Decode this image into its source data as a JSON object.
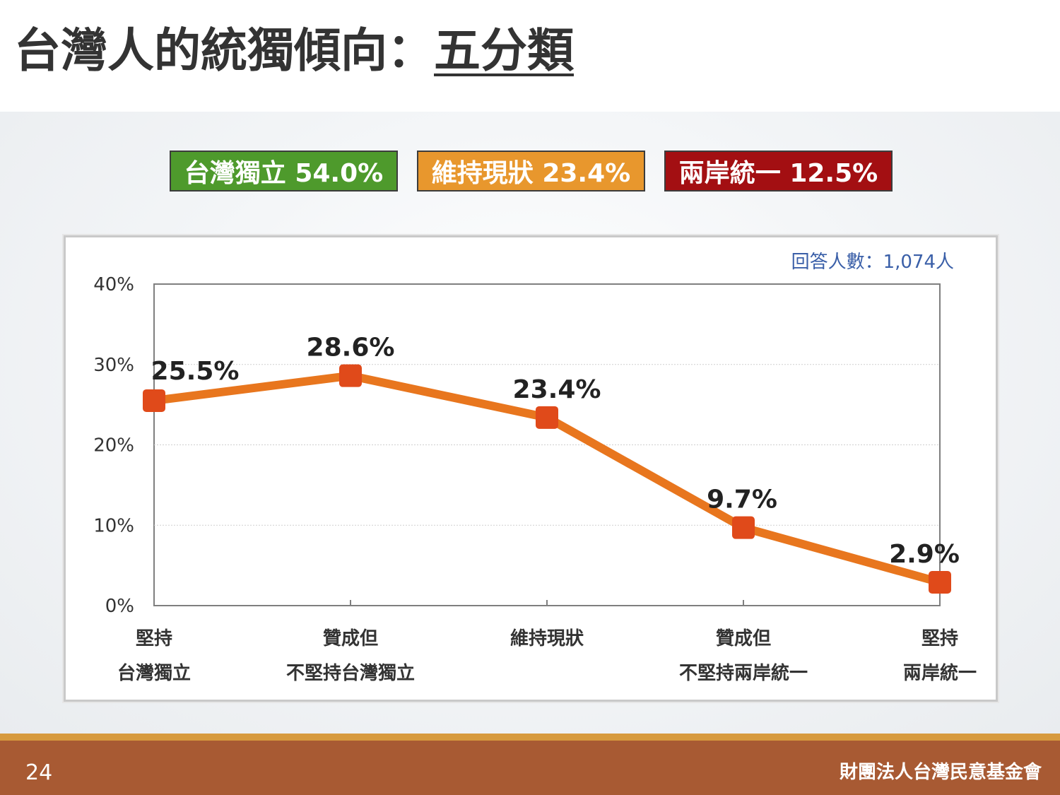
{
  "slide": {
    "title_main": "台灣人的統獨傾向：",
    "title_underlined": "五分類",
    "page_number": "24",
    "organization": "財團法人台灣民意基金會"
  },
  "badges": [
    {
      "label": "台灣獨立 54.0%",
      "color": "#4e9a2c"
    },
    {
      "label": "維持現狀 23.4%",
      "color": "#e8972d"
    },
    {
      "label": "兩岸統一 12.5%",
      "color": "#a30f12"
    }
  ],
  "chart_data": {
    "type": "line",
    "note": "回答人數：1,074人",
    "categories": [
      [
        "堅持",
        "台灣獨立"
      ],
      [
        "贊成但",
        "不堅持台灣獨立"
      ],
      [
        "維持現狀"
      ],
      [
        "贊成但",
        "不堅持兩岸統一"
      ],
      [
        "堅持",
        "兩岸統一"
      ]
    ],
    "values": [
      25.5,
      28.6,
      23.4,
      9.7,
      2.9
    ],
    "data_labels": [
      "25.5%",
      "28.6%",
      "23.4%",
      "9.7%",
      "2.9%"
    ],
    "y_ticks": [
      "0%",
      "10%",
      "20%",
      "30%",
      "40%"
    ],
    "ylim": [
      0,
      40
    ],
    "grid": true,
    "line_color": "#e8761e",
    "marker_color": "#e04a1a"
  }
}
